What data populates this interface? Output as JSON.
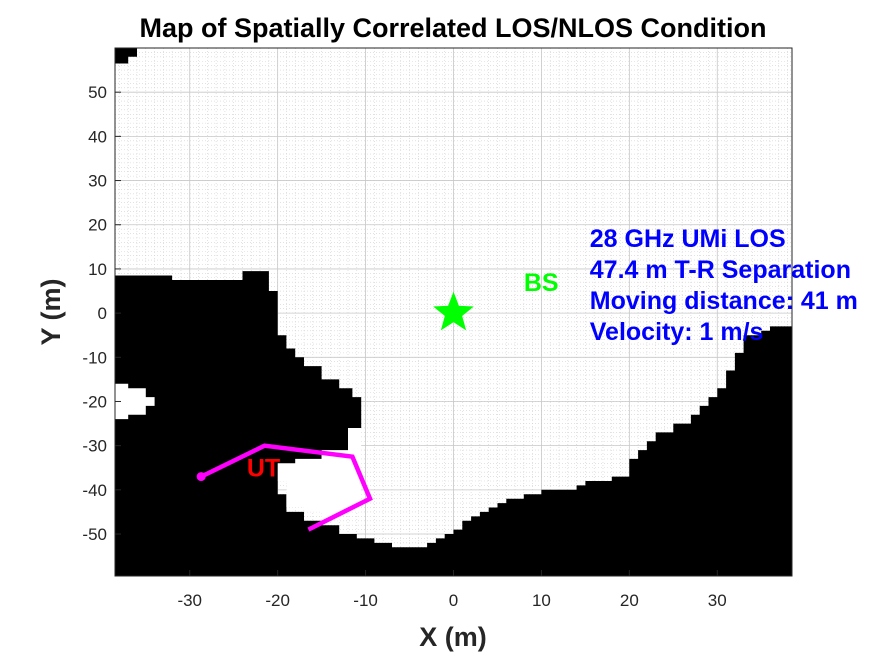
{
  "chart_data": {
    "type": "heatmap",
    "title": "Map of Spatially Correlated LOS/NLOS Condition",
    "xlabel": "X (m)",
    "ylabel": "Y (m)",
    "xlim": [
      -38.5,
      38.5
    ],
    "ylim": [
      -59.5,
      60
    ],
    "xticks": [
      -30,
      -20,
      -10,
      0,
      10,
      20,
      30
    ],
    "yticks": [
      -50,
      -40,
      -30,
      -20,
      -10,
      0,
      10,
      20,
      30,
      40,
      50
    ],
    "grid": true,
    "colors": {
      "los": "#ffffff",
      "nlos": "#000000",
      "bs": "#00ff00",
      "ut_label": "#ff0000",
      "track": "#ff00ff",
      "info_text": "#0000ff"
    },
    "nlos_regions": [
      {
        "name": "west-and-south-obstruction",
        "points": [
          [
            -38.5,
            8.5
          ],
          [
            -32,
            8.5
          ],
          [
            -32,
            7.5
          ],
          [
            -24,
            7.5
          ],
          [
            -24,
            9.5
          ],
          [
            -21,
            9.5
          ],
          [
            -21,
            5
          ],
          [
            -20,
            5
          ],
          [
            -20,
            -5
          ],
          [
            -19,
            -5
          ],
          [
            -19,
            -8
          ],
          [
            -18,
            -8
          ],
          [
            -18,
            -10
          ],
          [
            -17,
            -10
          ],
          [
            -17,
            -12
          ],
          [
            -15,
            -12
          ],
          [
            -15,
            -15
          ],
          [
            -13,
            -15
          ],
          [
            -13,
            -17
          ],
          [
            -11.5,
            -17
          ],
          [
            -11.5,
            -19
          ],
          [
            -10.5,
            -19
          ],
          [
            -10.5,
            -26
          ],
          [
            -12,
            -26
          ],
          [
            -12,
            -32
          ],
          [
            -15,
            -32
          ],
          [
            -15,
            -34
          ],
          [
            -17,
            -34
          ],
          [
            -17,
            -35
          ],
          [
            -18,
            -35
          ],
          [
            -18,
            -38
          ],
          [
            -20,
            -38
          ],
          [
            -20,
            -41
          ],
          [
            -19,
            -41
          ],
          [
            -19,
            -45
          ],
          [
            -17,
            -45
          ],
          [
            -17,
            -47
          ],
          [
            -15,
            -47
          ],
          [
            -15,
            -48
          ],
          [
            -13,
            -48
          ],
          [
            -13,
            -50
          ],
          [
            -11,
            -50
          ],
          [
            -11,
            -51
          ],
          [
            -9,
            -51
          ],
          [
            -9,
            -52
          ],
          [
            -7,
            -52
          ],
          [
            -7,
            -53
          ],
          [
            -3,
            -53
          ],
          [
            -3,
            -52
          ],
          [
            -2,
            -52
          ],
          [
            -2,
            -51
          ],
          [
            -1,
            -51
          ],
          [
            -1,
            -50
          ],
          [
            0,
            -50
          ],
          [
            0,
            -49
          ],
          [
            1,
            -49
          ],
          [
            1,
            -47
          ],
          [
            2,
            -47
          ],
          [
            2,
            -46
          ],
          [
            3,
            -46
          ],
          [
            3,
            -45
          ],
          [
            4,
            -45
          ],
          [
            4,
            -44
          ],
          [
            5,
            -44
          ],
          [
            5,
            -43
          ],
          [
            6,
            -43
          ],
          [
            6,
            -42
          ],
          [
            8,
            -42
          ],
          [
            8,
            -41
          ],
          [
            10,
            -41
          ],
          [
            10,
            -40
          ],
          [
            14,
            -40
          ],
          [
            14,
            -39
          ],
          [
            15,
            -39
          ],
          [
            15,
            -38
          ],
          [
            18,
            -38
          ],
          [
            18,
            -37
          ],
          [
            20,
            -37
          ],
          [
            20,
            -33
          ],
          [
            21,
            -33
          ],
          [
            21,
            -31
          ],
          [
            22,
            -31
          ],
          [
            22,
            -29
          ],
          [
            23,
            -29
          ],
          [
            23,
            -27
          ],
          [
            25,
            -27
          ],
          [
            25,
            -25
          ],
          [
            27,
            -25
          ],
          [
            27,
            -23
          ],
          [
            28,
            -23
          ],
          [
            28,
            -21
          ],
          [
            29,
            -21
          ],
          [
            29,
            -19
          ],
          [
            30,
            -19
          ],
          [
            30,
            -17
          ],
          [
            31,
            -17
          ],
          [
            31,
            -13
          ],
          [
            32,
            -13
          ],
          [
            32,
            -9
          ],
          [
            33,
            -9
          ],
          [
            33,
            -5
          ],
          [
            35,
            -5
          ],
          [
            35,
            -4
          ],
          [
            36,
            -4
          ],
          [
            36,
            -3
          ],
          [
            38.5,
            -3
          ],
          [
            38.5,
            -59.5
          ],
          [
            -38.5,
            -59.5
          ]
        ]
      },
      {
        "name": "north-west-corner",
        "points": [
          [
            -38.5,
            60
          ],
          [
            -36,
            60
          ],
          [
            -36,
            58
          ],
          [
            -37,
            58
          ],
          [
            -37,
            56.5
          ],
          [
            -38.5,
            56.5
          ]
        ]
      }
    ],
    "los_regions": [
      {
        "name": "west-los-pocket",
        "points": [
          [
            -38.5,
            -16
          ],
          [
            -37,
            -16
          ],
          [
            -37,
            -17
          ],
          [
            -35,
            -17
          ],
          [
            -35,
            -19
          ],
          [
            -34,
            -19
          ],
          [
            -34,
            -21
          ],
          [
            -35,
            -21
          ],
          [
            -35,
            -23
          ],
          [
            -37,
            -23
          ],
          [
            -37,
            -24
          ],
          [
            -38.5,
            -24
          ]
        ]
      },
      {
        "name": "ut-los-pocket",
        "points": [
          [
            -20,
            -36
          ],
          [
            -20,
            -34
          ],
          [
            -18,
            -34
          ],
          [
            -18,
            -33
          ],
          [
            -15,
            -33
          ],
          [
            -15,
            -31
          ],
          [
            -12,
            -31
          ],
          [
            -12,
            -26
          ],
          [
            -10.5,
            -26
          ],
          [
            -10.5,
            -45
          ],
          [
            -13,
            -45
          ],
          [
            -13,
            -47
          ],
          [
            -15,
            -47
          ],
          [
            -15,
            -45
          ],
          [
            -17,
            -45
          ],
          [
            -17,
            -44
          ],
          [
            -19,
            -44
          ],
          [
            -19,
            -38
          ],
          [
            -20,
            -38
          ]
        ]
      }
    ],
    "base_station": {
      "label": "BS",
      "x": 0,
      "y": 0,
      "label_x": 8,
      "label_y": 7
    },
    "user_terminal": {
      "label": "UT",
      "label_x": -23.5,
      "label_y": -35,
      "track": [
        [
          -28.7,
          -37
        ],
        [
          -21.5,
          -30
        ],
        [
          -11.5,
          -32.5
        ],
        [
          -9.5,
          -42
        ],
        [
          -16.5,
          -49
        ]
      ]
    },
    "annotations": [
      {
        "text": "28 GHz UMi LOS",
        "x": 15.5,
        "y": 17
      },
      {
        "text": "47.4 m T-R Separation",
        "x": 15.5,
        "y": 10
      },
      {
        "text": "Moving distance: 41 m",
        "x": 15.5,
        "y": 3
      },
      {
        "text": "Velocity: 1 m/s",
        "x": 15.5,
        "y": -4
      }
    ]
  }
}
